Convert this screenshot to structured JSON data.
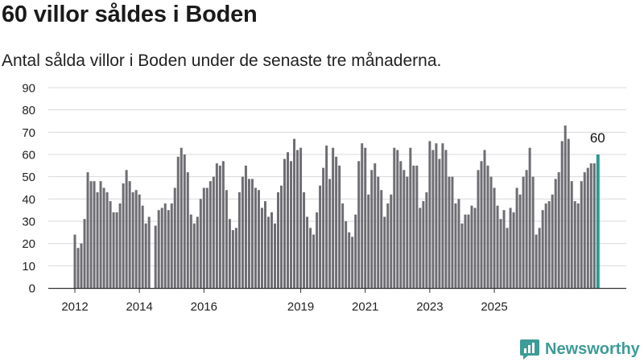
{
  "title": "60 villor såldes i Boden",
  "subtitle": "Antal sålda villor i Boden under de senaste tre månaderna.",
  "brand": "Newsworthy",
  "colors": {
    "bar": "#6e6d73",
    "highlight": "#2b9a94",
    "grid": "#d9d9d9",
    "axis": "#333333",
    "brand": "#3d9b98"
  },
  "chart_data": {
    "type": "bar",
    "ylim": [
      0,
      90
    ],
    "yticks": [
      0,
      10,
      20,
      30,
      40,
      50,
      60,
      70,
      80,
      90
    ],
    "xticks": [
      {
        "label": "2012",
        "index": 0
      },
      {
        "label": "2014",
        "index": 20
      },
      {
        "label": "2016",
        "index": 40
      },
      {
        "label": "2019",
        "index": 70
      },
      {
        "label": "2021",
        "index": 90
      },
      {
        "label": "2023",
        "index": 110
      },
      {
        "label": "2025",
        "index": 130
      }
    ],
    "values": [
      24,
      18,
      20,
      31,
      52,
      48,
      48,
      43,
      48,
      45,
      43,
      39,
      34,
      34,
      38,
      47,
      53,
      48,
      43,
      44,
      42,
      37,
      29,
      32,
      null,
      28,
      35,
      36,
      38,
      35,
      38,
      45,
      59,
      63,
      60,
      52,
      33,
      29,
      32,
      40,
      45,
      45,
      48,
      50,
      56,
      55,
      57,
      44,
      31,
      26,
      27,
      43,
      50,
      55,
      49,
      49,
      45,
      44,
      36,
      39,
      32,
      34,
      29,
      43,
      46,
      58,
      61,
      57,
      67,
      62,
      63,
      43,
      32,
      27,
      24,
      34,
      46,
      54,
      64,
      49,
      63,
      59,
      55,
      38,
      30,
      25,
      23,
      33,
      57,
      65,
      63,
      42,
      53,
      56,
      50,
      44,
      32,
      38,
      42,
      63,
      62,
      57,
      53,
      50,
      63,
      55,
      55,
      36,
      39,
      43,
      66,
      62,
      65,
      58,
      65,
      62,
      50,
      50,
      38,
      40,
      29,
      33,
      33,
      37,
      36,
      53,
      57,
      62,
      55,
      50,
      45,
      37,
      31,
      35,
      27,
      36,
      34,
      45,
      42,
      50,
      53,
      63,
      50,
      24,
      27,
      35,
      38,
      39,
      42,
      49,
      52,
      66,
      73,
      67,
      48,
      39,
      38,
      48,
      52,
      54,
      56,
      56,
      60
    ],
    "highlight_label": "60",
    "highlight_value": 60
  }
}
